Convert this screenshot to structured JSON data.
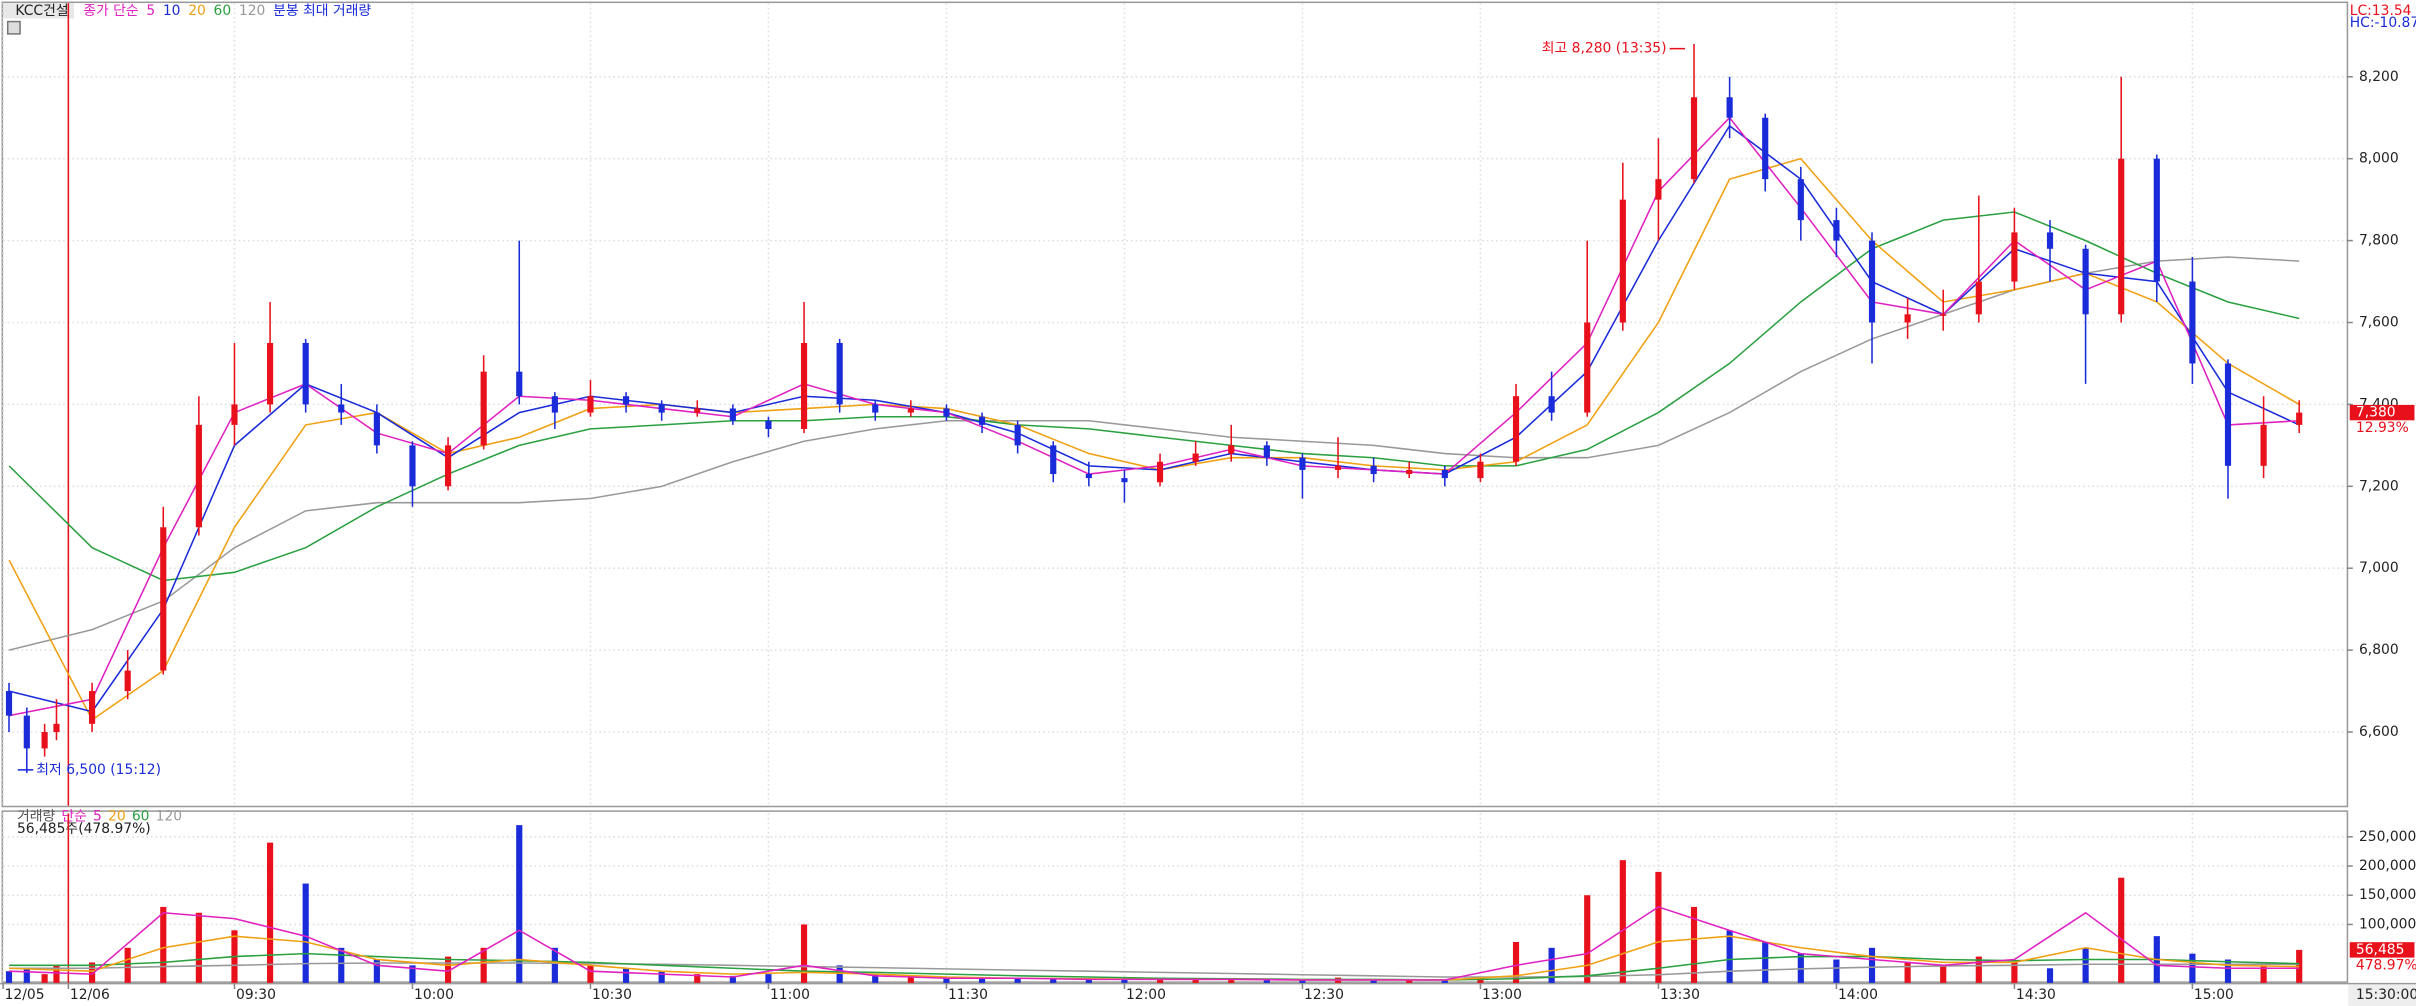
{
  "chart_data": {
    "type": "candlestick",
    "title": "KCC건설",
    "legend_prefix": "종가 단순",
    "legend_note": "분봉 최대 거래량",
    "indicators": [
      "LC:13.54",
      "HC:-10.87"
    ],
    "up_color": "#e8101a",
    "down_color": "#1a2bd9",
    "grid": true,
    "xlim": [
      -9,
      386
    ],
    "xticks": [
      {
        "value": -9,
        "label": "12/05"
      },
      {
        "value": 2,
        "label": "12/06"
      },
      {
        "value": 30,
        "label": "09:30"
      },
      {
        "value": 60,
        "label": "10:00"
      },
      {
        "value": 90,
        "label": "10:30"
      },
      {
        "value": 120,
        "label": "11:00"
      },
      {
        "value": 150,
        "label": "11:30"
      },
      {
        "value": 180,
        "label": "12:00"
      },
      {
        "value": 210,
        "label": "12:30"
      },
      {
        "value": 240,
        "label": "13:00"
      },
      {
        "value": 270,
        "label": "13:30"
      },
      {
        "value": 300,
        "label": "14:00"
      },
      {
        "value": 330,
        "label": "14:30"
      },
      {
        "value": 360,
        "label": "15:00"
      }
    ],
    "ylim": [
      6420,
      8380
    ],
    "yticks": [
      {
        "value": 6600,
        "label": "6,600"
      },
      {
        "value": 6800,
        "label": "6,800"
      },
      {
        "value": 7000,
        "label": "7,000"
      },
      {
        "value": 7200,
        "label": "7,200"
      },
      {
        "value": 7400,
        "label": "7,400"
      },
      {
        "value": 7600,
        "label": "7,600"
      },
      {
        "value": 7800,
        "label": "7,800"
      },
      {
        "value": 8000,
        "label": "8,000"
      },
      {
        "value": 8200,
        "label": "8,200"
      }
    ],
    "x": [
      -8,
      -5,
      -2,
      0,
      6,
      12,
      18,
      24,
      30,
      36,
      42,
      48,
      54,
      60,
      66,
      72,
      78,
      84,
      90,
      96,
      102,
      108,
      114,
      120,
      126,
      132,
      138,
      144,
      150,
      156,
      162,
      168,
      174,
      180,
      186,
      192,
      198,
      204,
      210,
      216,
      222,
      228,
      234,
      240,
      246,
      252,
      258,
      264,
      270,
      276,
      282,
      288,
      294,
      300,
      306,
      312,
      318,
      324,
      330,
      336,
      342,
      348,
      354,
      360,
      366,
      372,
      378
    ],
    "ohlc": [
      [
        6700,
        6720,
        6600,
        6640
      ],
      [
        6640,
        6660,
        6500,
        6560
      ],
      [
        6560,
        6620,
        6540,
        6600
      ],
      [
        6600,
        6680,
        6580,
        6620
      ],
      [
        6620,
        6720,
        6600,
        6700
      ],
      [
        6700,
        6800,
        6680,
        6750
      ],
      [
        6750,
        7150,
        6740,
        7100
      ],
      [
        7100,
        7420,
        7080,
        7350
      ],
      [
        7350,
        7550,
        7300,
        7400
      ],
      [
        7400,
        7650,
        7380,
        7550
      ],
      [
        7550,
        7560,
        7380,
        7400
      ],
      [
        7400,
        7450,
        7350,
        7380
      ],
      [
        7380,
        7400,
        7280,
        7300
      ],
      [
        7300,
        7310,
        7150,
        7200
      ],
      [
        7200,
        7320,
        7190,
        7300
      ],
      [
        7300,
        7520,
        7290,
        7480
      ],
      [
        7480,
        7800,
        7400,
        7420
      ],
      [
        7420,
        7430,
        7340,
        7380
      ],
      [
        7380,
        7460,
        7370,
        7420
      ],
      [
        7420,
        7430,
        7380,
        7400
      ],
      [
        7400,
        7410,
        7360,
        7380
      ],
      [
        7380,
        7410,
        7370,
        7390
      ],
      [
        7390,
        7400,
        7350,
        7360
      ],
      [
        7360,
        7370,
        7320,
        7340
      ],
      [
        7340,
        7650,
        7330,
        7550
      ],
      [
        7550,
        7560,
        7380,
        7400
      ],
      [
        7400,
        7410,
        7360,
        7380
      ],
      [
        7380,
        7410,
        7370,
        7390
      ],
      [
        7390,
        7400,
        7360,
        7370
      ],
      [
        7370,
        7380,
        7330,
        7350
      ],
      [
        7350,
        7360,
        7280,
        7300
      ],
      [
        7300,
        7310,
        7210,
        7230
      ],
      [
        7230,
        7260,
        7200,
        7220
      ],
      [
        7220,
        7240,
        7160,
        7210
      ],
      [
        7210,
        7280,
        7200,
        7260
      ],
      [
        7260,
        7310,
        7250,
        7280
      ],
      [
        7280,
        7350,
        7260,
        7300
      ],
      [
        7300,
        7310,
        7250,
        7270
      ],
      [
        7270,
        7280,
        7170,
        7240
      ],
      [
        7240,
        7320,
        7220,
        7250
      ],
      [
        7250,
        7270,
        7210,
        7230
      ],
      [
        7230,
        7260,
        7220,
        7240
      ],
      [
        7240,
        7250,
        7200,
        7220
      ],
      [
        7220,
        7280,
        7210,
        7260
      ],
      [
        7260,
        7450,
        7250,
        7420
      ],
      [
        7420,
        7480,
        7360,
        7380
      ],
      [
        7380,
        7800,
        7370,
        7600
      ],
      [
        7600,
        7990,
        7580,
        7900
      ],
      [
        7900,
        8050,
        7800,
        7950
      ],
      [
        7950,
        8280,
        7940,
        8150
      ],
      [
        8150,
        8200,
        8050,
        8100
      ],
      [
        8100,
        8110,
        7920,
        7950
      ],
      [
        7950,
        7980,
        7800,
        7850
      ],
      [
        7850,
        7880,
        7760,
        7800
      ],
      [
        7800,
        7820,
        7500,
        7600
      ],
      [
        7600,
        7660,
        7560,
        7620
      ],
      [
        7620,
        7680,
        7580,
        7620
      ],
      [
        7620,
        7910,
        7600,
        7700
      ],
      [
        7700,
        7880,
        7680,
        7820
      ],
      [
        7820,
        7850,
        7700,
        7780
      ],
      [
        7780,
        7790,
        7450,
        7620
      ],
      [
        7620,
        8200,
        7600,
        8000
      ],
      [
        8000,
        8010,
        7650,
        7700
      ],
      [
        7700,
        7760,
        7450,
        7500
      ],
      [
        7500,
        7510,
        7170,
        7250
      ],
      [
        7250,
        7420,
        7220,
        7350
      ],
      [
        7350,
        7410,
        7330,
        7380
      ]
    ],
    "moving_averages": {
      "x": [
        -8,
        6,
        18,
        30,
        42,
        54,
        66,
        78,
        90,
        102,
        114,
        126,
        138,
        150,
        162,
        174,
        186,
        198,
        210,
        222,
        234,
        246,
        258,
        270,
        282,
        294,
        306,
        318,
        330,
        342,
        354,
        366,
        378
      ],
      "series": [
        {
          "name": "5",
          "color": "#e020c0",
          "values": [
            6640,
            6680,
            7050,
            7380,
            7450,
            7330,
            7280,
            7420,
            7410,
            7390,
            7370,
            7450,
            7400,
            7380,
            7310,
            7230,
            7250,
            7290,
            7250,
            7240,
            7230,
            7380,
            7550,
            7920,
            8100,
            7880,
            7650,
            7620,
            7800,
            7680,
            7750,
            7350,
            7360
          ]
        },
        {
          "name": "10",
          "color": "#1a2bd9",
          "values": [
            6700,
            6650,
            6900,
            7300,
            7450,
            7380,
            7270,
            7380,
            7420,
            7400,
            7380,
            7420,
            7410,
            7380,
            7330,
            7250,
            7240,
            7280,
            7260,
            7240,
            7230,
            7320,
            7480,
            7800,
            8080,
            7950,
            7700,
            7620,
            7780,
            7720,
            7700,
            7430,
            7350
          ]
        },
        {
          "name": "20",
          "color": "#f0a010",
          "values": [
            7020,
            6630,
            6750,
            7100,
            7350,
            7380,
            7280,
            7320,
            7390,
            7400,
            7380,
            7390,
            7400,
            7390,
            7350,
            7280,
            7240,
            7270,
            7270,
            7250,
            7240,
            7260,
            7350,
            7600,
            7950,
            8000,
            7800,
            7650,
            7680,
            7720,
            7650,
            7500,
            7400
          ]
        },
        {
          "name": "60",
          "color": "#2aa040",
          "values": [
            7250,
            7050,
            6970,
            6990,
            7050,
            7150,
            7230,
            7300,
            7340,
            7350,
            7360,
            7360,
            7370,
            7370,
            7350,
            7340,
            7320,
            7300,
            7280,
            7270,
            7250,
            7250,
            7290,
            7380,
            7500,
            7650,
            7780,
            7850,
            7870,
            7800,
            7720,
            7650,
            7610
          ]
        },
        {
          "name": "120",
          "color": "#999999",
          "values": [
            6800,
            6850,
            6920,
            7050,
            7140,
            7160,
            7160,
            7160,
            7170,
            7200,
            7260,
            7310,
            7340,
            7360,
            7360,
            7360,
            7340,
            7320,
            7310,
            7300,
            7280,
            7270,
            7270,
            7300,
            7380,
            7480,
            7560,
            7620,
            7680,
            7720,
            7750,
            7760,
            7750
          ]
        }
      ]
    },
    "annotations": [
      {
        "text": "최고 8,280 (13:35)",
        "x": 275,
        "y": 8280
      },
      {
        "text": "최저 6,500 (15:12)",
        "x": -6,
        "y": 6500
      }
    ],
    "last_price": {
      "value": 7380,
      "label": "7,380",
      "change": "12.93%"
    },
    "volume": {
      "label": "거래량",
      "prefix": "단순",
      "summary": "56,485주(478.97%)",
      "values": [
        20000,
        25000,
        15000,
        30000,
        35000,
        60000,
        130000,
        120000,
        90000,
        240000,
        170000,
        60000,
        40000,
        30000,
        45000,
        60000,
        270000,
        60000,
        30000,
        25000,
        20000,
        15000,
        12000,
        15000,
        100000,
        30000,
        15000,
        12000,
        10000,
        8000,
        9000,
        8000,
        7000,
        8000,
        9000,
        7000,
        8000,
        7000,
        6000,
        9000,
        6000,
        5000,
        6000,
        10000,
        70000,
        60000,
        150000,
        210000,
        190000,
        130000,
        90000,
        70000,
        50000,
        40000,
        60000,
        35000,
        30000,
        45000,
        35000,
        25000,
        60000,
        180000,
        80000,
        50000,
        40000,
        30000,
        56485
      ],
      "ylim": [
        0,
        290000
      ],
      "yticks": [
        {
          "value": 100000,
          "label": "100,000"
        },
        {
          "value": 150000,
          "label": "150,000"
        },
        {
          "value": 200000,
          "label": "200,000"
        },
        {
          "value": 250000,
          "label": "250,000"
        }
      ],
      "ma": {
        "x": [
          -8,
          6,
          18,
          30,
          42,
          54,
          66,
          78,
          90,
          102,
          114,
          126,
          138,
          150,
          162,
          174,
          186,
          198,
          210,
          222,
          234,
          246,
          258,
          270,
          282,
          294,
          306,
          318,
          330,
          342,
          354,
          366,
          378
        ],
        "series": [
          {
            "name": "5",
            "color": "#e020c0",
            "values": [
              20000,
              15000,
              120000,
              110000,
              80000,
              30000,
              20000,
              90000,
              20000,
              15000,
              10000,
              30000,
              12000,
              8000,
              8000,
              6000,
              6000,
              6000,
              5000,
              5000,
              5000,
              30000,
              50000,
              130000,
              90000,
              50000,
              40000,
              30000,
              40000,
              120000,
              30000,
              25000,
              25000
            ]
          },
          {
            "name": "20",
            "color": "#f0a010",
            "values": [
              25000,
              20000,
              60000,
              80000,
              70000,
              40000,
              30000,
              40000,
              30000,
              20000,
              15000,
              18000,
              15000,
              10000,
              8000,
              7000,
              6000,
              6000,
              5000,
              5000,
              5000,
              12000,
              30000,
              70000,
              80000,
              60000,
              45000,
              35000,
              35000,
              60000,
              40000,
              30000,
              28000
            ]
          },
          {
            "name": "60",
            "color": "#2aa040",
            "values": [
              30000,
              30000,
              35000,
              45000,
              50000,
              45000,
              40000,
              38000,
              35000,
              30000,
              25000,
              20000,
              18000,
              15000,
              12000,
              10000,
              8000,
              7000,
              6000,
              6000,
              5000,
              7000,
              12000,
              25000,
              40000,
              45000,
              45000,
              40000,
              38000,
              40000,
              40000,
              36000,
              33000
            ]
          },
          {
            "name": "120",
            "color": "#999999",
            "values": [
              25000,
              25000,
              28000,
              30000,
              33000,
              34000,
              34000,
              34000,
              33000,
              32000,
              30000,
              28000,
              26000,
              24000,
              22000,
              20000,
              18000,
              16000,
              14000,
              12000,
              10000,
              10000,
              11000,
              14000,
              20000,
              24000,
              27000,
              29000,
              30000,
              32000,
              32000,
              32000,
              32000
            ]
          }
        ]
      },
      "last": {
        "value": 56485,
        "label": "56,485",
        "ratio": "478.97%"
      }
    },
    "time_label": "15:30:00"
  }
}
